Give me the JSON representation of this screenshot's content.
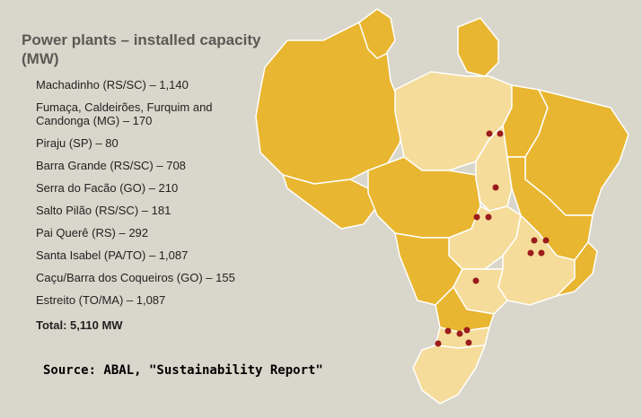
{
  "title": "Power plants – installed capacity (MW)",
  "plants": [
    "Machadinho (RS/SC) – 1,140",
    "Fumaça, Caldeirões, Furquim and Candonga (MG) – 170",
    "Piraju (SP) – 80",
    "Barra Grande (RS/SC) – 708",
    "Serra do Facão (GO) – 210",
    "Salto Pilão (RS/SC) – 181",
    "Pai Querê (RS) – 292",
    "Santa Isabel (PA/TO) – 1,087",
    "Caçu/Barra dos Coqueiros (GO) – 155",
    "Estreito (TO/MA) – 1,087"
  ],
  "total": "Total: 5,110 MW",
  "source": "Source: ABAL, \"Sustainability Report\"",
  "colors": {
    "background": "#d9d6cb",
    "state_dark": "#e8b630",
    "state_light": "#f5dc9a",
    "border": "#ffffff",
    "plant_marker": "#9b1c1c"
  },
  "map_markers": {
    "icon": "red-dot",
    "count": 15
  }
}
